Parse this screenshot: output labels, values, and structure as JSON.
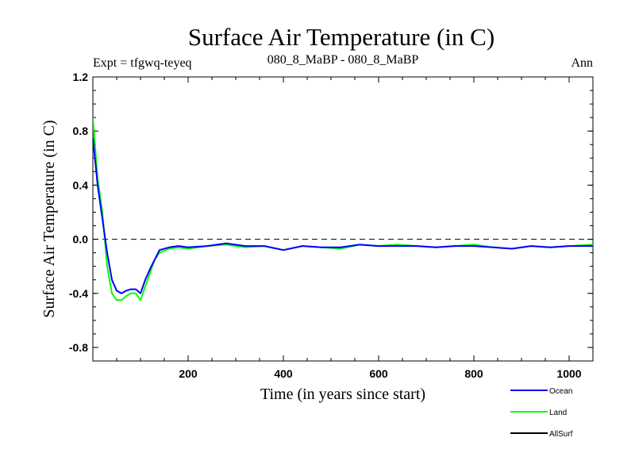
{
  "chart_data": {
    "type": "line",
    "title": "Surface Air Temperature (in C)",
    "subtitle_left": "Expt = tfgwq-teyeq",
    "subtitle_center": "080_8_MaBP - 080_8_MaBP",
    "subtitle_right": "Ann",
    "xlabel": "Time (in years since start)",
    "ylabel": "Surface Air Temperature (in C)",
    "xlim": [
      0,
      1050
    ],
    "ylim": [
      -0.9,
      1.2
    ],
    "xticks": [
      200,
      400,
      600,
      800,
      1000
    ],
    "xtick_labels": [
      "200",
      "400",
      "600",
      "800",
      "1000"
    ],
    "yticks": [
      1.2,
      0.8,
      0.4,
      0.0,
      -0.4,
      -0.8
    ],
    "ytick_labels": [
      "1.2",
      "0.8",
      "0.4",
      "0.0",
      "-0.4",
      "-0.8"
    ],
    "reference_line": 0.0,
    "legend_placement": "bottom-right",
    "series": [
      {
        "name": "Ocean",
        "color": "#0000ff",
        "x": [
          0,
          10,
          20,
          30,
          40,
          50,
          60,
          70,
          80,
          90,
          100,
          110,
          120,
          130,
          140,
          160,
          180,
          200,
          240,
          280,
          320,
          360,
          400,
          440,
          480,
          520,
          560,
          600,
          640,
          680,
          720,
          760,
          800,
          840,
          880,
          920,
          960,
          1000,
          1050
        ],
        "values": [
          0.75,
          0.4,
          0.15,
          -0.1,
          -0.3,
          -0.38,
          -0.4,
          -0.38,
          -0.37,
          -0.37,
          -0.4,
          -0.3,
          -0.22,
          -0.15,
          -0.08,
          -0.06,
          -0.05,
          -0.06,
          -0.05,
          -0.03,
          -0.05,
          -0.05,
          -0.08,
          -0.05,
          -0.06,
          -0.06,
          -0.04,
          -0.05,
          -0.05,
          -0.05,
          -0.06,
          -0.05,
          -0.05,
          -0.06,
          -0.07,
          -0.05,
          -0.06,
          -0.05,
          -0.05
        ]
      },
      {
        "name": "Land",
        "color": "#00ff00",
        "x": [
          0,
          10,
          20,
          30,
          40,
          50,
          60,
          70,
          80,
          90,
          100,
          110,
          120,
          130,
          140,
          160,
          180,
          200,
          240,
          280,
          320,
          360,
          400,
          440,
          480,
          520,
          560,
          600,
          640,
          680,
          720,
          760,
          800,
          840,
          880,
          920,
          960,
          1000,
          1050
        ],
        "values": [
          0.9,
          0.45,
          0.2,
          -0.2,
          -0.4,
          -0.45,
          -0.45,
          -0.42,
          -0.4,
          -0.4,
          -0.45,
          -0.35,
          -0.25,
          -0.15,
          -0.1,
          -0.07,
          -0.06,
          -0.07,
          -0.05,
          -0.04,
          -0.06,
          -0.05,
          -0.08,
          -0.05,
          -0.06,
          -0.07,
          -0.04,
          -0.05,
          -0.04,
          -0.05,
          -0.06,
          -0.05,
          -0.04,
          -0.06,
          -0.07,
          -0.05,
          -0.06,
          -0.05,
          -0.04
        ]
      },
      {
        "name": "AllSurf",
        "color": "#000000",
        "x": [],
        "values": []
      }
    ]
  }
}
